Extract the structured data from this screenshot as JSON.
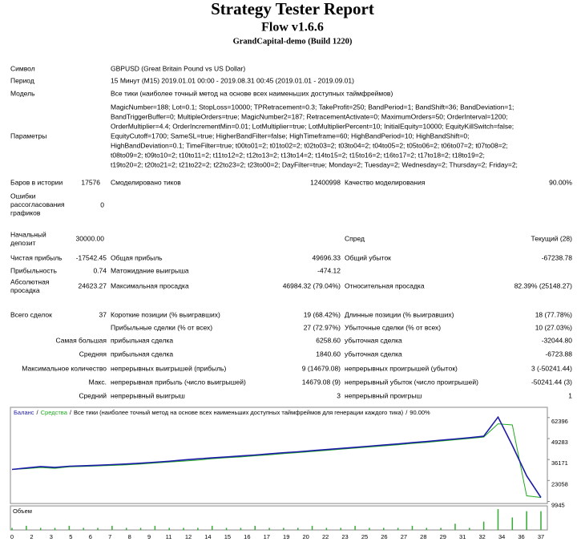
{
  "header": {
    "title": "Strategy Tester Report",
    "subtitle": "Flow v1.6.6",
    "server": "GrandCapital-demo (Build 1220)"
  },
  "info": {
    "symbol": {
      "label": "Символ",
      "value": "GBPUSD (Great Britain Pound vs US Dollar)"
    },
    "period": {
      "label": "Период",
      "value": "15 Минут (M15) 2019.01.01 00:00 - 2019.08.31 00:45 (2019.01.01 - 2019.09.01)"
    },
    "model": {
      "label": "Модель",
      "value": "Все тики (наиболее точный метод на основе всех наименьших доступных таймфреймов)"
    }
  },
  "parameters": {
    "label": "Параметры",
    "lines": [
      "MagicNumber=188; Lot=0.1; StopLoss=10000; TPRetracement=0.3; TakeProfit=250; BandPeriod=1; BandShift=36; BandDeviation=1;",
      "BandTriggerBuffer=0; MultipleOrders=true; MagicNumber2=187; RetracementActivate=0; MaximumOrders=50; OrderInterval=1200;",
      "OrderMultiplier=4.4; OrderIncrementMin=0.01; LotMultiplier=true; LotMultiplierPercent=10; InitialEquity=10000; EquityKillSwitch=false;",
      "EquityCutoff=1700; SameSL=true; HigherBandFilter=false; HighTimeframe=60; HighBandPeriod=10; HighBandShift=0;",
      "HighBandDeviation=0.1; TimeFilter=true; t00to01=2; t01to02=2; t02to03=2; t03to04=2; t04to05=2; t05to06=2; t06to07=2; t07to08=2;",
      "t08to09=2; t09to10=2; t10to11=2; t11to12=2; t12to13=2; t13to14=2; t14to15=2; t15to16=2; t16to17=2; t17to18=2; t18to19=2;",
      "t19to20=2; t20to21=2; t21to22=2; t22to23=2; t23to00=2; DayFilter=true; Monday=2; Tuesday=2; Wednesday=2; Thursday=2; Friday=2;"
    ]
  },
  "stats": {
    "bars_in_history": {
      "label": "Баров в истории",
      "value": "17576"
    },
    "ticks_modelled": {
      "label": "Смоделировано тиков",
      "value": "12400998"
    },
    "modelling_quality": {
      "label": "Качество моделирования",
      "value": "90.00%"
    },
    "mismatched_errors": {
      "label": [
        "Ошибки",
        "рассогласования",
        "графиков"
      ],
      "value": "0"
    },
    "initial_deposit": {
      "label": [
        "Начальный",
        "депозит"
      ],
      "value": "30000.00"
    },
    "spread": {
      "label": "Спред",
      "value": "Текущий (28)"
    },
    "net_profit": {
      "label": "Чистая прибыль",
      "value": "-17542.45"
    },
    "gross_profit": {
      "label": "Общая прибыль",
      "value": "49696.33"
    },
    "gross_loss": {
      "label": "Общий убыток",
      "value": "-67238.78"
    },
    "profit_factor": {
      "label": "Прибыльность",
      "value": "0.74"
    },
    "expected_payoff": {
      "label": "Матожидание выигрыша",
      "value": "-474.12"
    },
    "absolute_drawdown": {
      "label": [
        "Абсолютная",
        "просадка"
      ],
      "value": "24623.27"
    },
    "maximal_drawdown": {
      "label": "Максимальная просадка",
      "value": "46984.32 (79.04%)"
    },
    "relative_drawdown": {
      "label": "Относительная просадка",
      "value": "82.39% (25148.27)"
    },
    "total_trades": {
      "label": "Всего сделок",
      "value": "37"
    },
    "short_positions": {
      "label": "Короткие позиции (% выигравших)",
      "value": "19 (68.42%)"
    },
    "long_positions": {
      "label": "Длинные позиции (% выигравших)",
      "value": "18 (77.78%)"
    },
    "profit_trades": {
      "label": "Прибыльные сделки (% от всех)",
      "value": "27 (72.97%)"
    },
    "loss_trades": {
      "label": "Убыточные сделки (% от всех)",
      "value": "10 (27.03%)"
    },
    "largest": {
      "label": "Самая большая",
      "profit_label": "прибыльная сделка",
      "profit": "6258.60",
      "loss_label": "убыточная сделка",
      "loss": "-32044.80"
    },
    "average": {
      "label": "Средняя",
      "profit_label": "прибыльная сделка",
      "profit": "1840.60",
      "loss_label": "убыточная сделка",
      "loss": "-6723.88"
    },
    "max_consecutive": {
      "label": "Максимальное количество",
      "profit_label": "непрерывных выигрышей (прибыль)",
      "profit": "9 (14679.08)",
      "loss_label": "непрерывных проигрышей (убыток)",
      "loss": "3 (-50241.44)"
    },
    "maximal": {
      "label": "Макс.",
      "profit_label": "непрерывная прибыль (число выигрышей)",
      "profit": "14679.08 (9)",
      "loss_label": "непрерывный убыток (число проигрышей)",
      "loss": "-50241.44 (3)"
    },
    "average_consecutive": {
      "label": "Средний",
      "profit_label": "непрерывный выигрыш",
      "profit": "3",
      "loss_label": "непрерывный проигрыш",
      "loss": "1"
    }
  },
  "chart_data": {
    "type": "line",
    "legend_separator": "/",
    "legend_text": "Все тики (наиболее точный метод на основе всех наименьших доступных таймфреймов для генерации каждого тика)",
    "legend_quality": "90.00%",
    "series": [
      {
        "name": "Баланс",
        "color": "#1c1ca8",
        "values": [
          30000,
          30900,
          31800,
          31300,
          32000,
          32300,
          32600,
          33000,
          33400,
          33900,
          34500,
          35100,
          35900,
          36600,
          37200,
          37800,
          38400,
          39000,
          39700,
          40400,
          41000,
          41700,
          42400,
          43100,
          43800,
          44500,
          45200,
          45900,
          46700,
          47400,
          48200,
          49000,
          49800,
          50700,
          62700,
          45000,
          26000,
          12458
        ]
      },
      {
        "name": "Средства",
        "color": "#22aa22",
        "values": [
          30000,
          30500,
          31200,
          30700,
          31600,
          31900,
          32200,
          32500,
          32900,
          33400,
          34000,
          34600,
          35200,
          35800,
          36700,
          37300,
          37800,
          38500,
          39100,
          39900,
          40500,
          41200,
          41900,
          42600,
          43300,
          44000,
          44700,
          45400,
          46200,
          46900,
          47700,
          48500,
          49300,
          50200,
          58500,
          57800,
          13500,
          12458
        ]
      }
    ],
    "ylim": [
      8700,
      66300
    ],
    "yticks": [
      62396,
      49283,
      36171,
      23058,
      9945
    ],
    "volume": {
      "label": "Объем",
      "color": "#33aa33",
      "vlim": [
        0,
        10
      ],
      "values": [
        1,
        2,
        1,
        1,
        2,
        1,
        1,
        2,
        1,
        1,
        2,
        1,
        1,
        1,
        2,
        1,
        1,
        2,
        1,
        1,
        1,
        2,
        1,
        1,
        2,
        1,
        1,
        1,
        2,
        1,
        1,
        3,
        1,
        4,
        10,
        6,
        9,
        9
      ]
    },
    "x_labels": [
      0,
      2,
      3,
      5,
      6,
      7,
      8,
      9,
      11,
      12,
      14,
      15,
      16,
      17,
      19,
      20,
      22,
      23,
      25,
      26,
      27,
      28,
      29,
      31,
      32,
      34,
      36,
      37
    ]
  }
}
